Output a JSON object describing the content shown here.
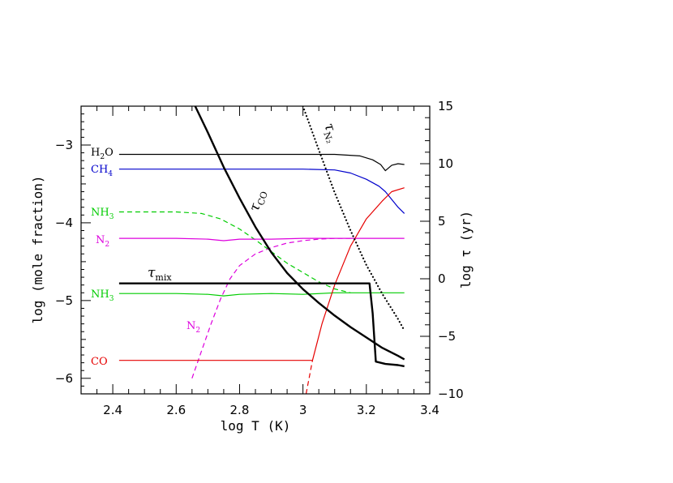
{
  "chart_data": {
    "type": "line",
    "xlabel": "log T (K)",
    "ylabel": "log (mole fraction)",
    "y2label": "log τ (yr)",
    "xlim": [
      2.3,
      3.4
    ],
    "ylim": [
      -6.2,
      -2.5
    ],
    "y2lim": [
      -10,
      15
    ],
    "x_ticks": [
      "2.4",
      "2.6",
      "2.8",
      "3",
      "3.2",
      "3.4"
    ],
    "y_ticks": [
      "−3",
      "−4",
      "−5",
      "−6"
    ],
    "y2_ticks": [
      "15",
      "10",
      "5",
      "0",
      "−5",
      "−10"
    ],
    "grid": false,
    "colors": {
      "black": "#000000",
      "blue": "#0000cc",
      "green": "#00cc00",
      "magenta": "#dd00dd",
      "red": "#e60000"
    },
    "series": [
      {
        "name": "H2O",
        "color": "black",
        "axis": "left",
        "style": "solid",
        "x": [
          2.42,
          2.8,
          3.0,
          3.1,
          3.18,
          3.22,
          3.245,
          3.26,
          3.28,
          3.3,
          3.32
        ],
        "y": [
          -3.12,
          -3.12,
          -3.12,
          -3.12,
          -3.14,
          -3.19,
          -3.25,
          -3.33,
          -3.26,
          -3.24,
          -3.25
        ]
      },
      {
        "name": "CH4",
        "color": "blue",
        "axis": "left",
        "style": "solid",
        "x": [
          2.42,
          2.8,
          3.0,
          3.1,
          3.15,
          3.2,
          3.24,
          3.26,
          3.28,
          3.3,
          3.32
        ],
        "y": [
          -3.31,
          -3.31,
          -3.31,
          -3.32,
          -3.36,
          -3.44,
          -3.53,
          -3.6,
          -3.7,
          -3.8,
          -3.88
        ]
      },
      {
        "name": "NH3",
        "color": "green",
        "axis": "left",
        "style": "dashed",
        "x": [
          2.42,
          2.5,
          2.6,
          2.68,
          2.74,
          2.8,
          2.85,
          2.9,
          2.95,
          3.0,
          3.05,
          3.1,
          3.15
        ],
        "y": [
          -3.86,
          -3.86,
          -3.86,
          -3.88,
          -3.95,
          -4.08,
          -4.22,
          -4.37,
          -4.52,
          -4.64,
          -4.76,
          -4.85,
          -4.9
        ]
      },
      {
        "name": "NH3",
        "color": "green",
        "axis": "left",
        "style": "solid",
        "x": [
          2.42,
          2.6,
          2.7,
          2.75,
          2.8,
          2.9,
          3.0,
          3.1,
          3.2,
          3.32
        ],
        "y": [
          -4.91,
          -4.91,
          -4.92,
          -4.94,
          -4.92,
          -4.91,
          -4.92,
          -4.9,
          -4.9,
          -4.9
        ]
      },
      {
        "name": "N2",
        "color": "magenta",
        "axis": "left",
        "style": "solid",
        "x": [
          2.42,
          2.6,
          2.7,
          2.75,
          2.8,
          2.9,
          3.0,
          3.1,
          3.2,
          3.32
        ],
        "y": [
          -4.2,
          -4.2,
          -4.21,
          -4.23,
          -4.21,
          -4.21,
          -4.2,
          -4.2,
          -4.2,
          -4.2
        ]
      },
      {
        "name": "N2",
        "color": "magenta",
        "axis": "left",
        "style": "dashed",
        "x": [
          2.65,
          2.68,
          2.71,
          2.74,
          2.77,
          2.8,
          2.85,
          2.9,
          2.95,
          3.0,
          3.05,
          3.1,
          3.15
        ],
        "y": [
          -6.0,
          -5.65,
          -5.3,
          -4.98,
          -4.72,
          -4.55,
          -4.4,
          -4.32,
          -4.26,
          -4.23,
          -4.21,
          -4.2,
          -4.2
        ]
      },
      {
        "name": "CO",
        "color": "red",
        "axis": "left",
        "style": "solid",
        "x": [
          2.42,
          2.8,
          3.0,
          3.03,
          3.03,
          3.06,
          3.1,
          3.15,
          3.2,
          3.25,
          3.28,
          3.32
        ],
        "y": [
          -5.77,
          -5.77,
          -5.77,
          -5.77,
          -5.77,
          -5.3,
          -4.8,
          -4.3,
          -3.95,
          -3.72,
          -3.6,
          -3.55
        ]
      },
      {
        "name": "CO",
        "color": "red",
        "axis": "left",
        "style": "dashed",
        "x": [
          3.01,
          3.03
        ],
        "y": [
          -6.2,
          -5.77
        ]
      },
      {
        "name": "τ_CO",
        "color": "black",
        "axis": "right",
        "style": "thick",
        "x": [
          2.66,
          2.7,
          2.75,
          2.8,
          2.85,
          2.9,
          2.95,
          3.0,
          3.05,
          3.1,
          3.15,
          3.2,
          3.25,
          3.3,
          3.32
        ],
        "y": [
          15,
          12.7,
          9.7,
          7.0,
          4.5,
          2.3,
          0.5,
          -0.9,
          -2.1,
          -3.2,
          -4.2,
          -5.1,
          -6.0,
          -6.7,
          -7.0
        ]
      },
      {
        "name": "τ_mix",
        "color": "black",
        "axis": "right",
        "style": "thick",
        "x": [
          2.42,
          3.21,
          3.22,
          3.23,
          3.26,
          3.3,
          3.32
        ],
        "y": [
          -0.4,
          -0.4,
          -3.0,
          -7.2,
          -7.4,
          -7.5,
          -7.6
        ]
      },
      {
        "name": "τ_N2",
        "color": "black",
        "axis": "right",
        "style": "dotted",
        "x": [
          3.0,
          3.05,
          3.1,
          3.15,
          3.2,
          3.25,
          3.3,
          3.32
        ],
        "y": [
          15,
          11.2,
          7.5,
          4.2,
          1.2,
          -1.3,
          -3.5,
          -4.5
        ]
      }
    ],
    "annotations": [
      {
        "text": "H",
        "sub": "2",
        "text2": "O",
        "color": "black"
      },
      {
        "text": "CH",
        "sub": "4",
        "text2": "",
        "color": "blue"
      },
      {
        "text": "NH",
        "sub": "3",
        "text2": "",
        "color": "green"
      },
      {
        "text": "N",
        "sub": "2",
        "text2": "",
        "color": "magenta"
      },
      {
        "text": "NH",
        "sub": "3",
        "text2": "",
        "color": "green"
      },
      {
        "text": "N",
        "sub": "2",
        "text2": "",
        "color": "magenta"
      },
      {
        "text": "CO",
        "sub": "",
        "text2": "",
        "color": "red"
      },
      {
        "text": "τ",
        "sub": "mix",
        "text2": "",
        "color": "black"
      },
      {
        "text": "τ",
        "sub": "CO",
        "text2": "",
        "color": "black"
      },
      {
        "text": "τ",
        "sub": "N₂",
        "text2": "",
        "color": "black"
      }
    ]
  }
}
